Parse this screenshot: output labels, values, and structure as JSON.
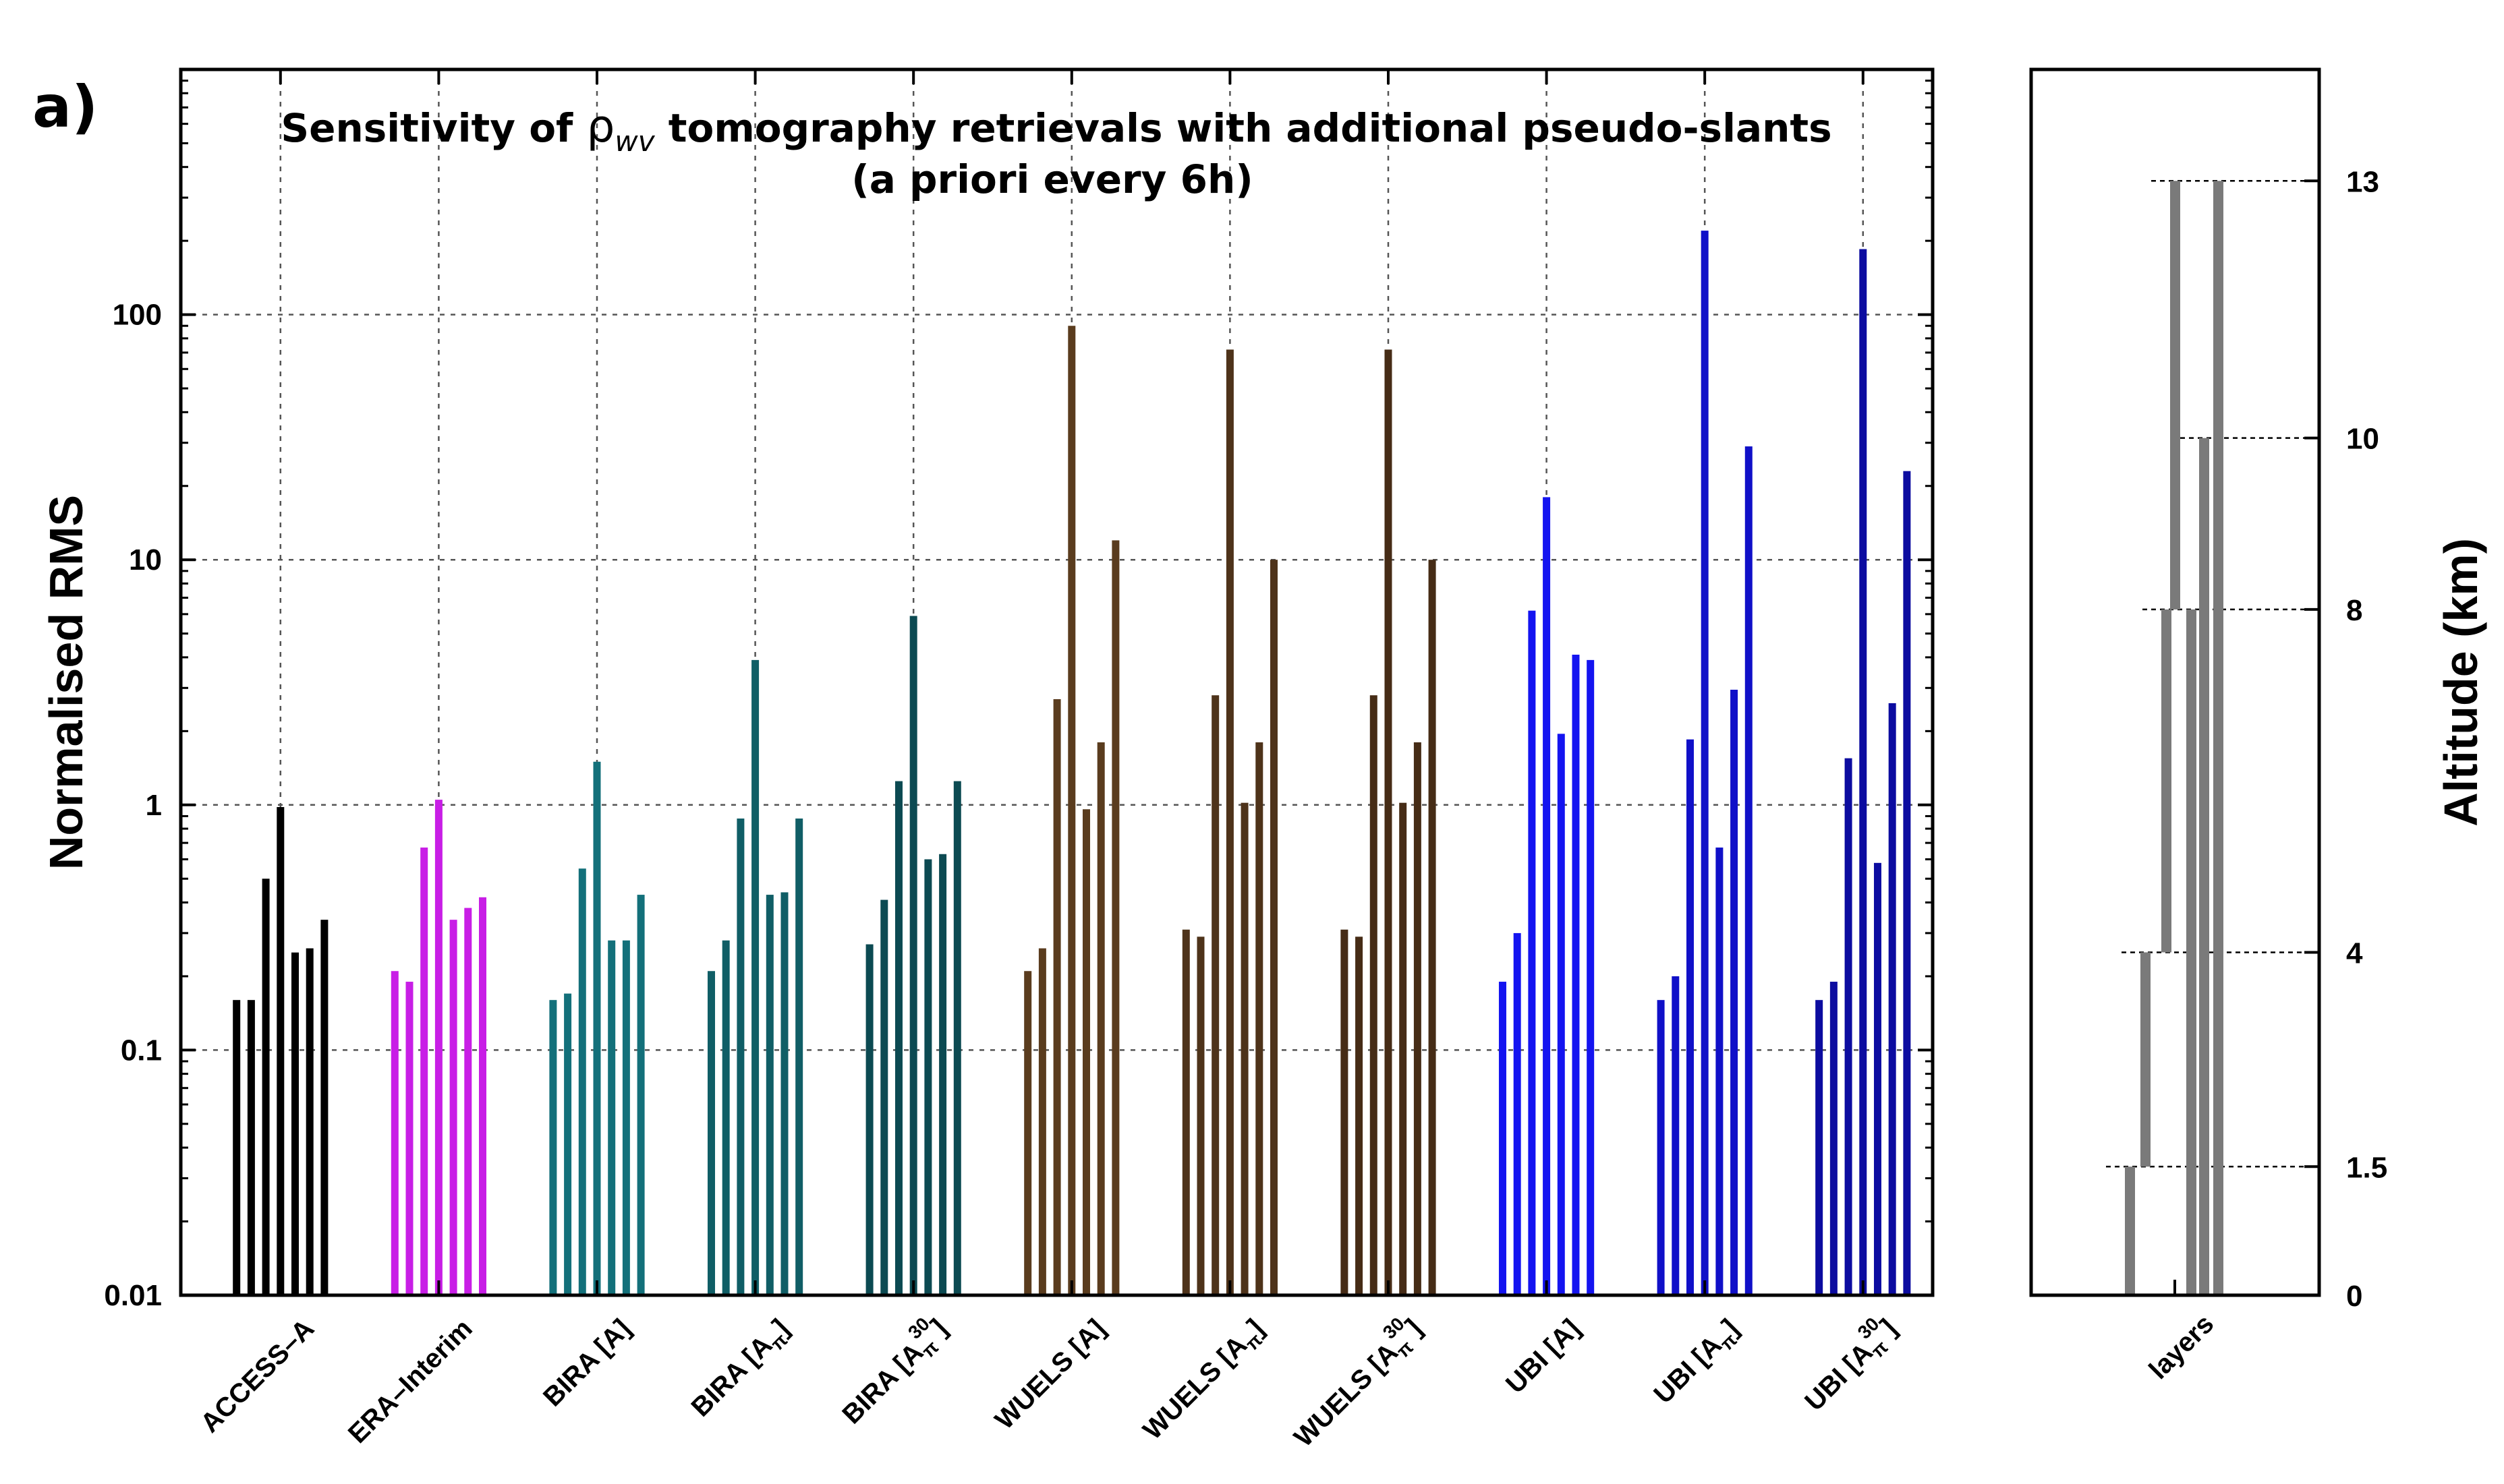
{
  "chart_data": [
    {
      "type": "bar",
      "panel_label": "a)",
      "title_prefix": "Sensitivity of ",
      "title_symbol": "ρ",
      "title_subscript": "wv",
      "title_suffix": " tomography retrievals with additional pseudo-slants",
      "subtitle": "(a priori every 6h)",
      "ylabel": "Normalised RMS",
      "yscale": "log",
      "ylim": [
        0.01,
        1000
      ],
      "yticks": [
        0.01,
        0.1,
        1,
        10,
        100
      ],
      "ytick_labels": [
        "0.01",
        "0.1",
        "1",
        "10",
        "100"
      ],
      "grid": true,
      "bars_per_group": 7,
      "categories": [
        {
          "label": "ACCESS–A",
          "sub": "",
          "sup": "",
          "color": "#000000",
          "values": [
            0.16,
            0.16,
            0.5,
            0.98,
            0.25,
            0.26,
            0.34
          ]
        },
        {
          "label": "ERA–Interim",
          "sub": "",
          "sup": "",
          "color": "#c81ee6",
          "values": [
            0.21,
            0.19,
            0.67,
            1.05,
            0.34,
            0.38,
            0.42
          ]
        },
        {
          "label": "BIRA [A]",
          "sub": "",
          "sup": "",
          "color": "#13707a",
          "values": [
            0.16,
            0.17,
            0.55,
            1.5,
            0.28,
            0.28,
            0.43
          ]
        },
        {
          "label": "BIRA [A",
          "sub": "π",
          "sup": "",
          "color": "#105e66",
          "values": [
            0.21,
            0.28,
            0.88,
            3.9,
            0.43,
            0.44,
            0.88
          ]
        },
        {
          "label": "BIRA [A",
          "sub": "π",
          "sup": "30",
          "color": "#0c4a52",
          "values": [
            0.27,
            0.41,
            1.25,
            5.9,
            0.6,
            0.63,
            1.25
          ]
        },
        {
          "label": "WUELS [A]",
          "sub": "",
          "sup": "",
          "color": "#5a3c1e",
          "values": [
            0.21,
            0.26,
            2.7,
            90,
            0.96,
            1.8,
            12
          ]
        },
        {
          "label": "WUELS [A",
          "sub": "π",
          "sup": "",
          "color": "#4e331a",
          "values": [
            0.31,
            0.29,
            2.8,
            72,
            1.02,
            1.8,
            10
          ]
        },
        {
          "label": "WUELS [A",
          "sub": "π",
          "sup": "30",
          "color": "#462c16",
          "values": [
            0.31,
            0.29,
            2.8,
            72,
            1.02,
            1.8,
            10
          ]
        },
        {
          "label": "UBI [A]",
          "sub": "",
          "sup": "",
          "color": "#1414f0",
          "values": [
            0.19,
            0.3,
            6.2,
            18,
            1.95,
            4.1,
            3.9
          ]
        },
        {
          "label": "UBI [A",
          "sub": "π",
          "sup": "",
          "color": "#1010c8",
          "values": [
            0.16,
            0.2,
            1.85,
            220,
            0.67,
            2.95,
            29
          ]
        },
        {
          "label": "UBI [A",
          "sub": "π",
          "sup": "30",
          "color": "#0c0ca0",
          "values": [
            0.16,
            0.19,
            1.55,
            185,
            0.58,
            2.6,
            23
          ]
        }
      ]
    },
    {
      "type": "bar",
      "xlabel": "layers",
      "ylabel": "Altitude (km)",
      "ylim": [
        0,
        14.3
      ],
      "ytick_labels": [
        "0",
        "1.5",
        "4",
        "8",
        "10",
        "13"
      ],
      "ytick_values": [
        0,
        1.5,
        4,
        8,
        10,
        13
      ],
      "bar_color": "#7a7a7a",
      "layers": [
        {
          "bottom": 0,
          "top": 1.5
        },
        {
          "bottom": 1.5,
          "top": 4
        },
        {
          "bottom": 4,
          "top": 8
        },
        {
          "bottom": 8,
          "top": 13
        },
        {
          "bottom": 0,
          "top": 8
        },
        {
          "bottom": 0,
          "top": 10
        },
        {
          "bottom": 0,
          "top": 13
        }
      ]
    }
  ]
}
